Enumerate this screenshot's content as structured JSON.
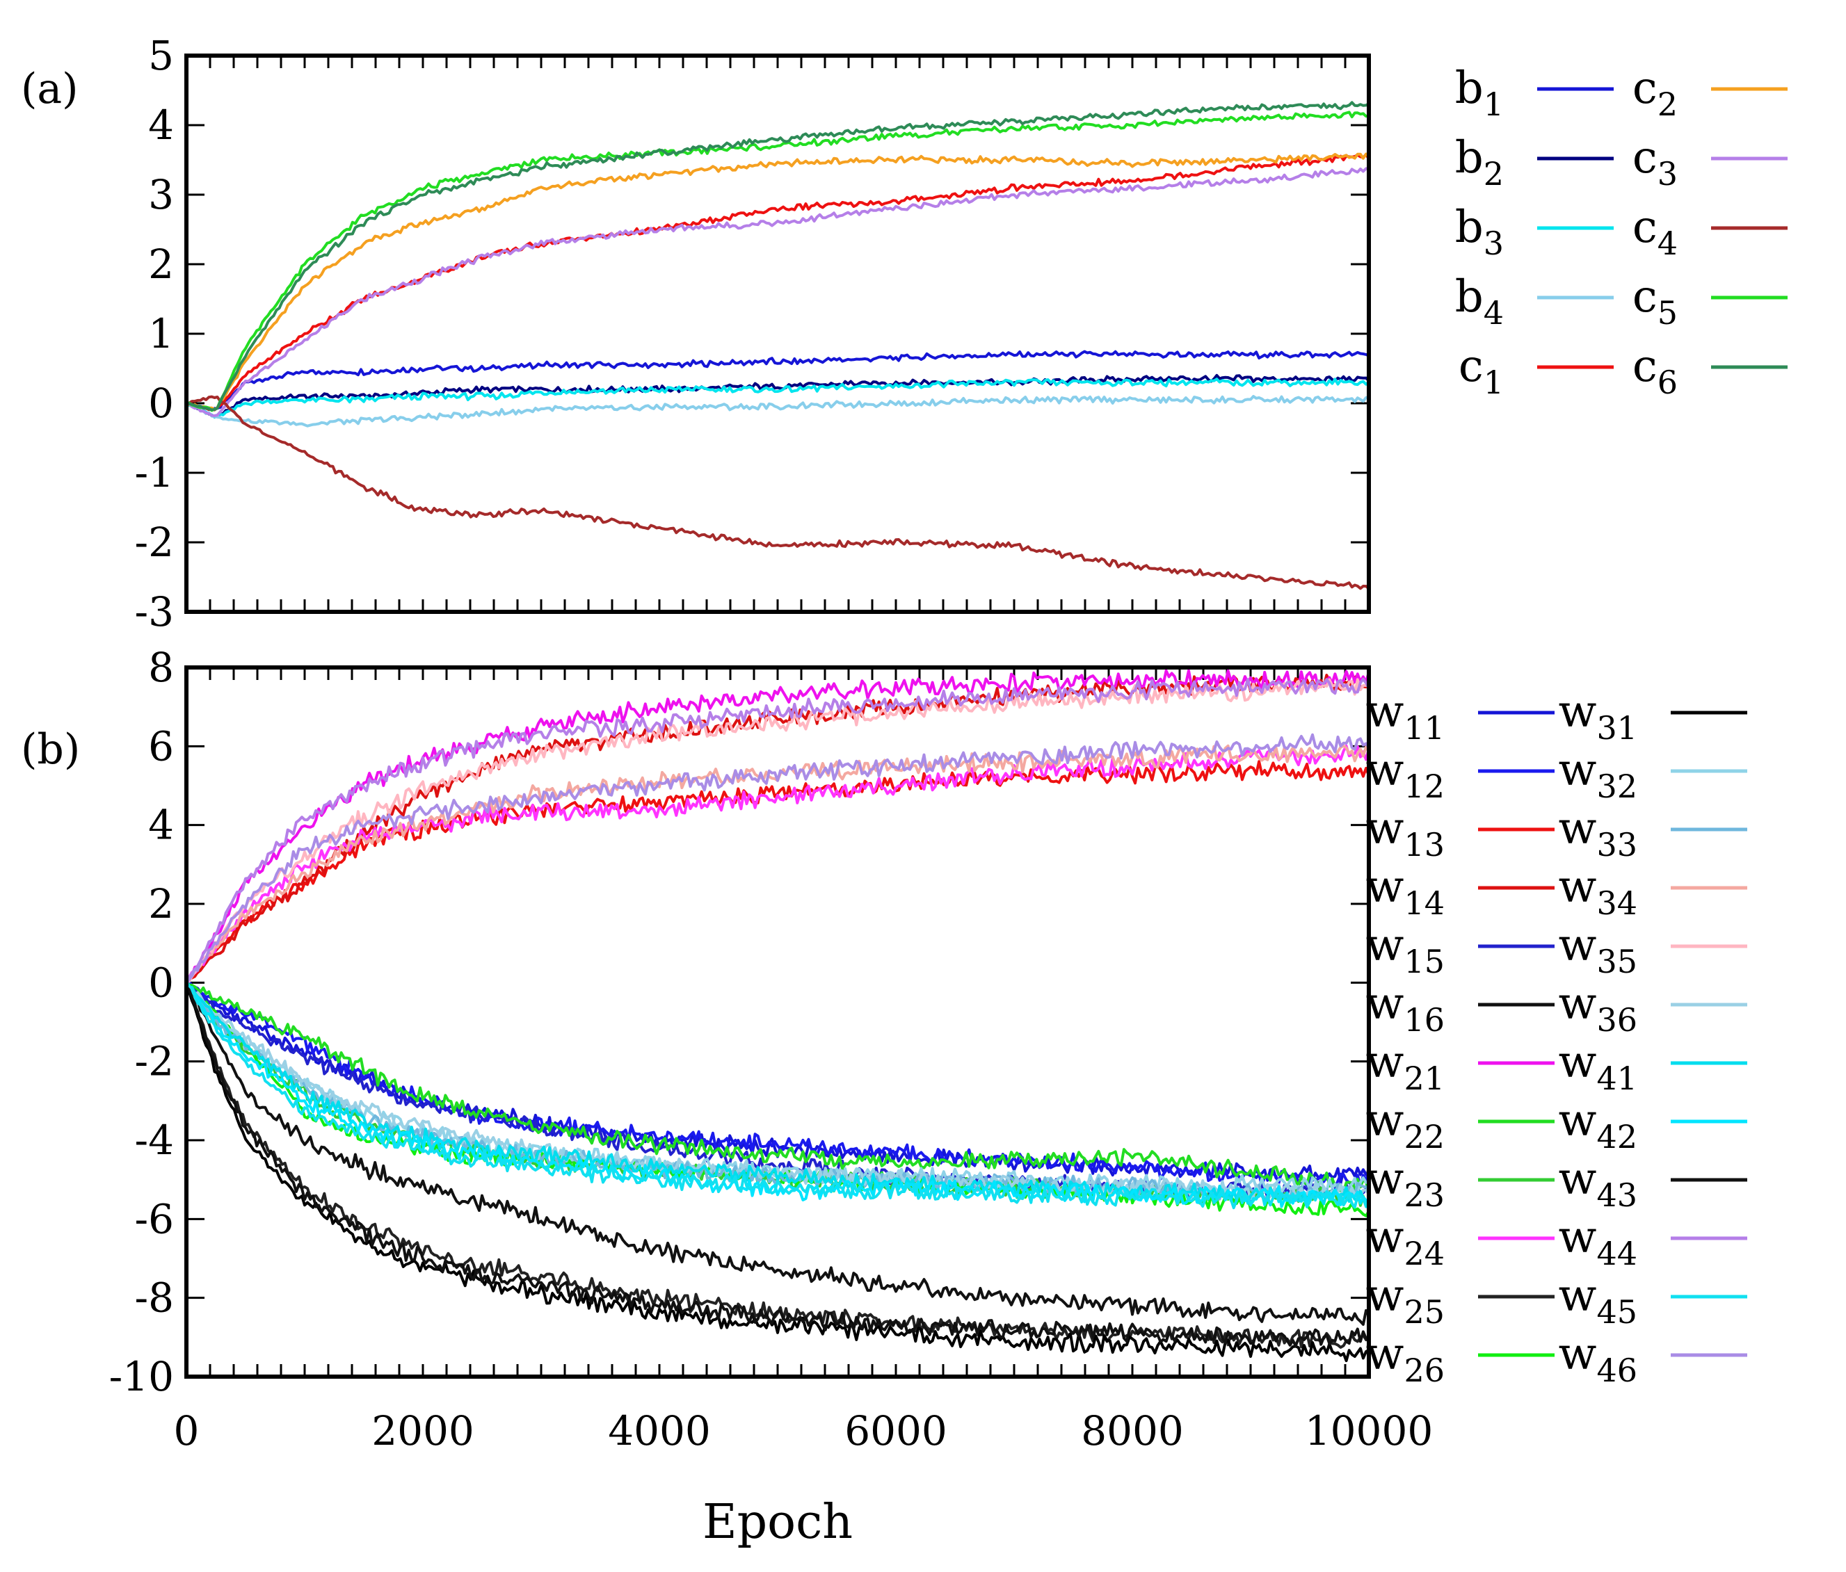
{
  "chart_data": [
    {
      "type": "line",
      "panel_label": "(a)",
      "xlabel": "",
      "ylabel": "",
      "xlim": [
        0,
        10000
      ],
      "ylim": [
        -3,
        5
      ],
      "yticks": [
        "5",
        "4",
        "3",
        "2",
        "1",
        "0",
        "-1",
        "-2",
        "-3"
      ],
      "x": [
        0,
        250,
        500,
        1000,
        1500,
        2000,
        2500,
        3000,
        4000,
        5000,
        6000,
        7000,
        8000,
        9000,
        10000
      ],
      "series": [
        {
          "name": "b",
          "sub": "1",
          "color": "#1515d6",
          "values": [
            0,
            -0.1,
            0.3,
            0.45,
            0.45,
            0.5,
            0.5,
            0.55,
            0.55,
            0.6,
            0.65,
            0.7,
            0.7,
            0.7,
            0.7
          ]
        },
        {
          "name": "b",
          "sub": "2",
          "color": "#000080",
          "values": [
            0,
            -0.2,
            0.05,
            0.1,
            0.1,
            0.15,
            0.2,
            0.2,
            0.2,
            0.25,
            0.3,
            0.3,
            0.35,
            0.35,
            0.35
          ]
        },
        {
          "name": "b",
          "sub": "3",
          "color": "#00e5ee",
          "values": [
            0,
            -0.2,
            0.0,
            0.05,
            0.05,
            0.1,
            0.1,
            0.15,
            0.2,
            0.2,
            0.25,
            0.3,
            0.3,
            0.3,
            0.3
          ]
        },
        {
          "name": "b",
          "sub": "4",
          "color": "#87ceeb",
          "values": [
            0,
            -0.2,
            -0.25,
            -0.3,
            -0.25,
            -0.2,
            -0.15,
            -0.1,
            -0.05,
            -0.05,
            0.0,
            0.05,
            0.05,
            0.05,
            0.05
          ]
        },
        {
          "name": "c",
          "sub": "1",
          "color": "#ee1111",
          "values": [
            0,
            -0.1,
            0.4,
            1.0,
            1.5,
            1.8,
            2.1,
            2.3,
            2.5,
            2.8,
            2.9,
            3.1,
            3.2,
            3.4,
            3.55
          ]
        },
        {
          "name": "c",
          "sub": "2",
          "color": "#f5a020",
          "values": [
            0,
            -0.1,
            0.6,
            1.7,
            2.3,
            2.6,
            2.8,
            3.1,
            3.3,
            3.45,
            3.5,
            3.5,
            3.45,
            3.5,
            3.55
          ]
        },
        {
          "name": "c",
          "sub": "3",
          "color": "#b57fe8",
          "values": [
            0,
            -0.2,
            0.3,
            0.9,
            1.5,
            1.8,
            2.1,
            2.3,
            2.5,
            2.6,
            2.8,
            3.0,
            3.1,
            3.2,
            3.35
          ]
        },
        {
          "name": "c",
          "sub": "4",
          "color": "#a52a2a",
          "values": [
            0,
            0.1,
            -0.3,
            -0.7,
            -1.2,
            -1.55,
            -1.6,
            -1.55,
            -1.8,
            -2.05,
            -2.0,
            -2.05,
            -2.35,
            -2.5,
            -2.65
          ]
        },
        {
          "name": "c",
          "sub": "5",
          "color": "#22dd22",
          "values": [
            0,
            -0.1,
            0.8,
            2.0,
            2.7,
            3.1,
            3.3,
            3.5,
            3.6,
            3.7,
            3.85,
            3.95,
            4.0,
            4.1,
            4.15
          ]
        },
        {
          "name": "c",
          "sub": "6",
          "color": "#2e8b57",
          "values": [
            0,
            -0.1,
            0.7,
            1.9,
            2.6,
            3.0,
            3.2,
            3.4,
            3.6,
            3.8,
            3.95,
            4.05,
            4.15,
            4.25,
            4.3
          ]
        }
      ]
    },
    {
      "type": "line",
      "panel_label": "(b)",
      "xlabel": "Epoch",
      "ylabel": "",
      "xlim": [
        0,
        10000
      ],
      "ylim": [
        -10,
        8
      ],
      "yticks": [
        "8",
        "6",
        "4",
        "2",
        "0",
        "-2",
        "-4",
        "-6",
        "-8",
        "-10"
      ],
      "xticks": [
        "0",
        "2000",
        "4000",
        "6000",
        "8000",
        "10000"
      ],
      "x": [
        0,
        250,
        500,
        1000,
        1500,
        2000,
        2500,
        3000,
        4000,
        5000,
        6000,
        7000,
        8000,
        9000,
        10000
      ],
      "series": [
        {
          "name": "w",
          "sub": "11",
          "color": "#1515d6",
          "values": [
            0,
            -0.6,
            -1.0,
            -1.8,
            -2.4,
            -3.0,
            -3.3,
            -3.6,
            -4.0,
            -4.2,
            -4.4,
            -4.6,
            -4.7,
            -4.8,
            -4.9
          ]
        },
        {
          "name": "w",
          "sub": "12",
          "color": "#1a1aee",
          "values": [
            0,
            -0.5,
            -0.8,
            -1.5,
            -2.4,
            -3.0,
            -3.4,
            -3.6,
            -3.9,
            -4.1,
            -4.3,
            -4.5,
            -4.7,
            -4.9,
            -5.0
          ]
        },
        {
          "name": "w",
          "sub": "13",
          "color": "#ee1111",
          "values": [
            0,
            0.8,
            1.6,
            2.5,
            3.5,
            3.9,
            4.2,
            4.4,
            4.6,
            4.8,
            5.0,
            5.2,
            5.3,
            5.4,
            5.3
          ]
        },
        {
          "name": "w",
          "sub": "14",
          "color": "#dd1111",
          "values": [
            0,
            0.7,
            1.5,
            2.5,
            3.8,
            4.8,
            5.4,
            5.9,
            6.3,
            6.7,
            7.0,
            7.3,
            7.5,
            7.6,
            7.6
          ]
        },
        {
          "name": "w",
          "sub": "15",
          "color": "#2222cc",
          "values": [
            0,
            -0.7,
            -1.1,
            -1.9,
            -2.6,
            -3.1,
            -3.4,
            -3.7,
            -4.2,
            -4.6,
            -4.9,
            -5.1,
            -5.2,
            -5.3,
            -5.3
          ]
        },
        {
          "name": "w",
          "sub": "16",
          "color": "#111111",
          "values": [
            0,
            -1.4,
            -2.8,
            -4.0,
            -4.7,
            -5.2,
            -5.6,
            -6.0,
            -6.8,
            -7.3,
            -7.7,
            -8.0,
            -8.2,
            -8.4,
            -8.5
          ]
        },
        {
          "name": "w",
          "sub": "21",
          "color": "#ee11ee",
          "values": [
            0,
            1.2,
            2.5,
            4.0,
            5.0,
            5.7,
            6.1,
            6.5,
            7.0,
            7.3,
            7.5,
            7.6,
            7.7,
            7.7,
            7.7
          ]
        },
        {
          "name": "w",
          "sub": "22",
          "color": "#22dd22",
          "values": [
            0,
            -0.4,
            -0.7,
            -1.4,
            -2.2,
            -2.9,
            -3.3,
            -3.7,
            -4.1,
            -4.4,
            -4.6,
            -4.5,
            -4.4,
            -4.8,
            -5.2
          ]
        },
        {
          "name": "w",
          "sub": "23",
          "color": "#33cc33",
          "values": [
            0,
            -1.0,
            -1.7,
            -2.8,
            -3.6,
            -4.0,
            -4.3,
            -4.5,
            -4.8,
            -5.0,
            -5.1,
            -5.2,
            -5.3,
            -5.4,
            -5.5
          ]
        },
        {
          "name": "w",
          "sub": "24",
          "color": "#ff33ff",
          "values": [
            0,
            0.9,
            1.8,
            3.0,
            3.7,
            4.0,
            4.2,
            4.3,
            4.4,
            4.7,
            5.0,
            5.3,
            5.5,
            5.7,
            5.8
          ]
        },
        {
          "name": "w",
          "sub": "25",
          "color": "#222222",
          "values": [
            0,
            -2.0,
            -3.6,
            -5.2,
            -6.2,
            -6.8,
            -7.2,
            -7.5,
            -8.0,
            -8.4,
            -8.6,
            -8.8,
            -8.9,
            -9.0,
            -9.1
          ]
        },
        {
          "name": "w",
          "sub": "26",
          "color": "#11ee11",
          "values": [
            0,
            -0.8,
            -1.6,
            -3.3,
            -3.9,
            -4.2,
            -4.4,
            -4.5,
            -4.7,
            -4.9,
            -5.1,
            -5.2,
            -5.4,
            -5.6,
            -5.8
          ]
        },
        {
          "name": "w",
          "sub": "31",
          "color": "#000000",
          "values": [
            0,
            -2.3,
            -4.0,
            -5.6,
            -6.6,
            -7.2,
            -7.6,
            -7.9,
            -8.4,
            -8.7,
            -8.9,
            -9.1,
            -9.2,
            -9.3,
            -9.4
          ]
        },
        {
          "name": "w",
          "sub": "32",
          "color": "#8fd3e8",
          "values": [
            0,
            -0.9,
            -1.5,
            -2.6,
            -3.3,
            -3.8,
            -4.1,
            -4.3,
            -4.6,
            -4.8,
            -4.9,
            -5.0,
            -5.1,
            -5.1,
            -5.2
          ]
        },
        {
          "name": "w",
          "sub": "33",
          "color": "#6fb7dd",
          "values": [
            0,
            -1.0,
            -1.6,
            -2.7,
            -3.4,
            -3.9,
            -4.2,
            -4.4,
            -4.7,
            -4.9,
            -5.0,
            -5.1,
            -5.2,
            -5.3,
            -5.3
          ]
        },
        {
          "name": "w",
          "sub": "34",
          "color": "#f4a8a0",
          "values": [
            0,
            0.9,
            1.7,
            2.8,
            3.6,
            4.1,
            4.5,
            4.8,
            5.1,
            5.3,
            5.5,
            5.6,
            5.7,
            5.8,
            5.8
          ]
        },
        {
          "name": "w",
          "sub": "35",
          "color": "#ffb6c1",
          "values": [
            0,
            1.0,
            2.0,
            3.2,
            4.2,
            4.9,
            5.4,
            5.8,
            6.3,
            6.6,
            6.9,
            7.1,
            7.3,
            7.4,
            7.5
          ]
        },
        {
          "name": "w",
          "sub": "36",
          "color": "#9ad0e5",
          "values": [
            0,
            -0.8,
            -1.4,
            -2.5,
            -3.2,
            -3.7,
            -4.0,
            -4.3,
            -4.6,
            -4.8,
            -5.0,
            -5.1,
            -5.2,
            -5.3,
            -5.3
          ]
        },
        {
          "name": "w",
          "sub": "41",
          "color": "#00ddee",
          "values": [
            0,
            -0.9,
            -1.6,
            -2.8,
            -3.5,
            -3.9,
            -4.2,
            -4.4,
            -4.7,
            -4.9,
            -5.1,
            -5.2,
            -5.3,
            -5.4,
            -5.4
          ]
        },
        {
          "name": "w",
          "sub": "42",
          "color": "#00e5ff",
          "values": [
            0,
            -1.1,
            -1.8,
            -3.0,
            -3.7,
            -4.1,
            -4.4,
            -4.6,
            -4.9,
            -5.3,
            -5.2,
            -5.3,
            -5.4,
            -5.4,
            -5.5
          ]
        },
        {
          "name": "w",
          "sub": "43",
          "color": "#111111",
          "values": [
            0,
            -2.1,
            -3.7,
            -5.4,
            -6.4,
            -7.0,
            -7.4,
            -7.7,
            -8.2,
            -8.5,
            -8.7,
            -8.8,
            -8.9,
            -9.0,
            -9.0
          ]
        },
        {
          "name": "w",
          "sub": "44",
          "color": "#b57fe8",
          "values": [
            0,
            1.3,
            2.6,
            4.2,
            5.0,
            5.6,
            6.0,
            6.3,
            6.6,
            6.9,
            7.1,
            7.3,
            7.4,
            7.5,
            7.6
          ]
        },
        {
          "name": "w",
          "sub": "45",
          "color": "#11e0f0",
          "values": [
            0,
            -1.2,
            -2.0,
            -3.3,
            -3.9,
            -4.3,
            -4.5,
            -4.7,
            -5.0,
            -5.2,
            -5.3,
            -5.4,
            -5.4,
            -5.5,
            -5.5
          ]
        },
        {
          "name": "w",
          "sub": "46",
          "color": "#a98ce6",
          "values": [
            0,
            1.0,
            2.0,
            3.4,
            4.0,
            4.3,
            4.5,
            4.7,
            5.0,
            5.3,
            5.5,
            5.7,
            5.9,
            6.0,
            6.1
          ]
        }
      ]
    }
  ]
}
